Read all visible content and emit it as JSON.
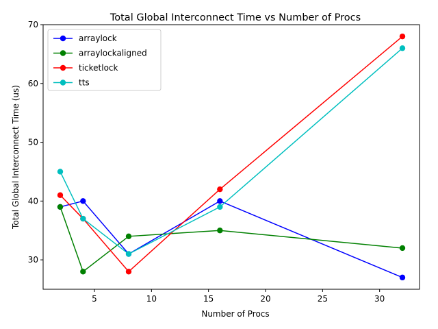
{
  "chart_data": {
    "type": "line",
    "title": "Total Global Interconnect Time vs Number of Procs",
    "xlabel": "Number of Procs",
    "ylabel": "Total Global Interconnect Time (us)",
    "xlim": [
      0.5,
      33.5
    ],
    "ylim": [
      25,
      70
    ],
    "xticks": [
      5,
      10,
      15,
      20,
      25,
      30
    ],
    "yticks": [
      30,
      40,
      50,
      60,
      70
    ],
    "grid": false,
    "legend_position": "top-left",
    "x": [
      2,
      4,
      8,
      16,
      32
    ],
    "series": [
      {
        "name": "arraylock",
        "color": "#0000ff",
        "values": [
          39,
          40,
          31,
          40,
          27
        ]
      },
      {
        "name": "arraylockaligned",
        "color": "#008000",
        "values": [
          39,
          28,
          34,
          35,
          32
        ]
      },
      {
        "name": "ticketlock",
        "color": "#ff0000",
        "values": [
          41,
          37,
          28,
          42,
          68
        ]
      },
      {
        "name": "tts",
        "color": "#00bfbf",
        "values": [
          45,
          37,
          31,
          39,
          66
        ]
      }
    ]
  }
}
